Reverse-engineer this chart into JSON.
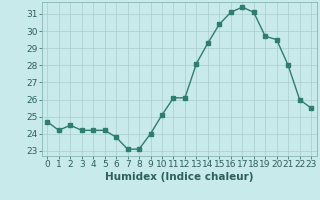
{
  "x": [
    0,
    1,
    2,
    3,
    4,
    5,
    6,
    7,
    8,
    9,
    10,
    11,
    12,
    13,
    14,
    15,
    16,
    17,
    18,
    19,
    20,
    21,
    22,
    23
  ],
  "y": [
    24.7,
    24.2,
    24.5,
    24.2,
    24.2,
    24.2,
    23.8,
    23.1,
    23.1,
    24.0,
    25.1,
    26.1,
    26.1,
    28.1,
    29.3,
    30.4,
    31.1,
    31.4,
    31.1,
    29.7,
    29.5,
    28.0,
    26.0,
    25.5
  ],
  "line_color": "#2e7d6e",
  "marker": "s",
  "marker_size": 2.5,
  "bg_color": "#c8eaea",
  "grid_color": "#aacccc",
  "xlabel": "Humidex (Indice chaleur)",
  "ylim": [
    22.7,
    31.7
  ],
  "xlim": [
    -0.5,
    23.5
  ],
  "yticks": [
    23,
    24,
    25,
    26,
    27,
    28,
    29,
    30,
    31
  ],
  "xticks": [
    0,
    1,
    2,
    3,
    4,
    5,
    6,
    7,
    8,
    9,
    10,
    11,
    12,
    13,
    14,
    15,
    16,
    17,
    18,
    19,
    20,
    21,
    22,
    23
  ],
  "tick_label_fontsize": 6.5,
  "xlabel_fontsize": 7.5,
  "line_width": 1.0
}
